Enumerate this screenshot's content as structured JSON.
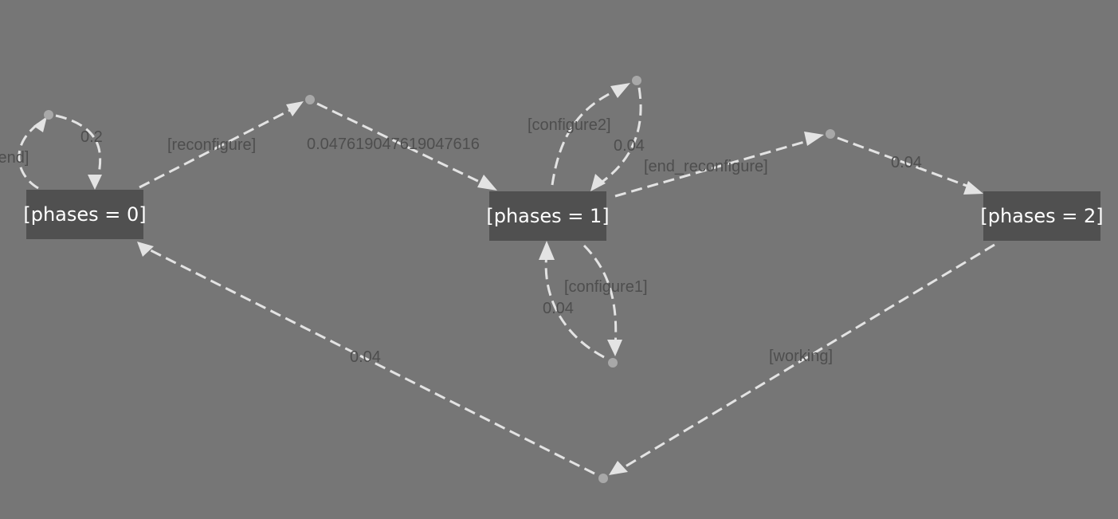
{
  "states": [
    {
      "id": "s0",
      "label": "[phases = 0]"
    },
    {
      "id": "s1",
      "label": "[phases = 1]"
    },
    {
      "id": "s2",
      "label": "[phases = 2]"
    }
  ],
  "transitions": [
    {
      "from": "s0",
      "to": "s0",
      "action": "[end]",
      "probability": "0.2"
    },
    {
      "from": "s0",
      "to": "s1",
      "action": "[reconfigure]",
      "probability": "0.047619047619047616"
    },
    {
      "from": "s1",
      "to": "s1",
      "action": "[configure2]",
      "probability": "0.04"
    },
    {
      "from": "s1",
      "to": "s1",
      "action": "[configure1]",
      "probability": "0.04"
    },
    {
      "from": "s1",
      "to": "s2",
      "action": "[end_reconfigure]",
      "probability": "0.04"
    },
    {
      "from": "s2",
      "to": "s0",
      "action": "[working]",
      "probability": "0.04"
    }
  ],
  "colors": {
    "background": "#767676",
    "state_fill": "#505050",
    "state_text": "#ffffff",
    "edge": "#e3e3e3",
    "intermediate_node": "#a8a8a8",
    "edge_label": "#4e4e4e"
  }
}
